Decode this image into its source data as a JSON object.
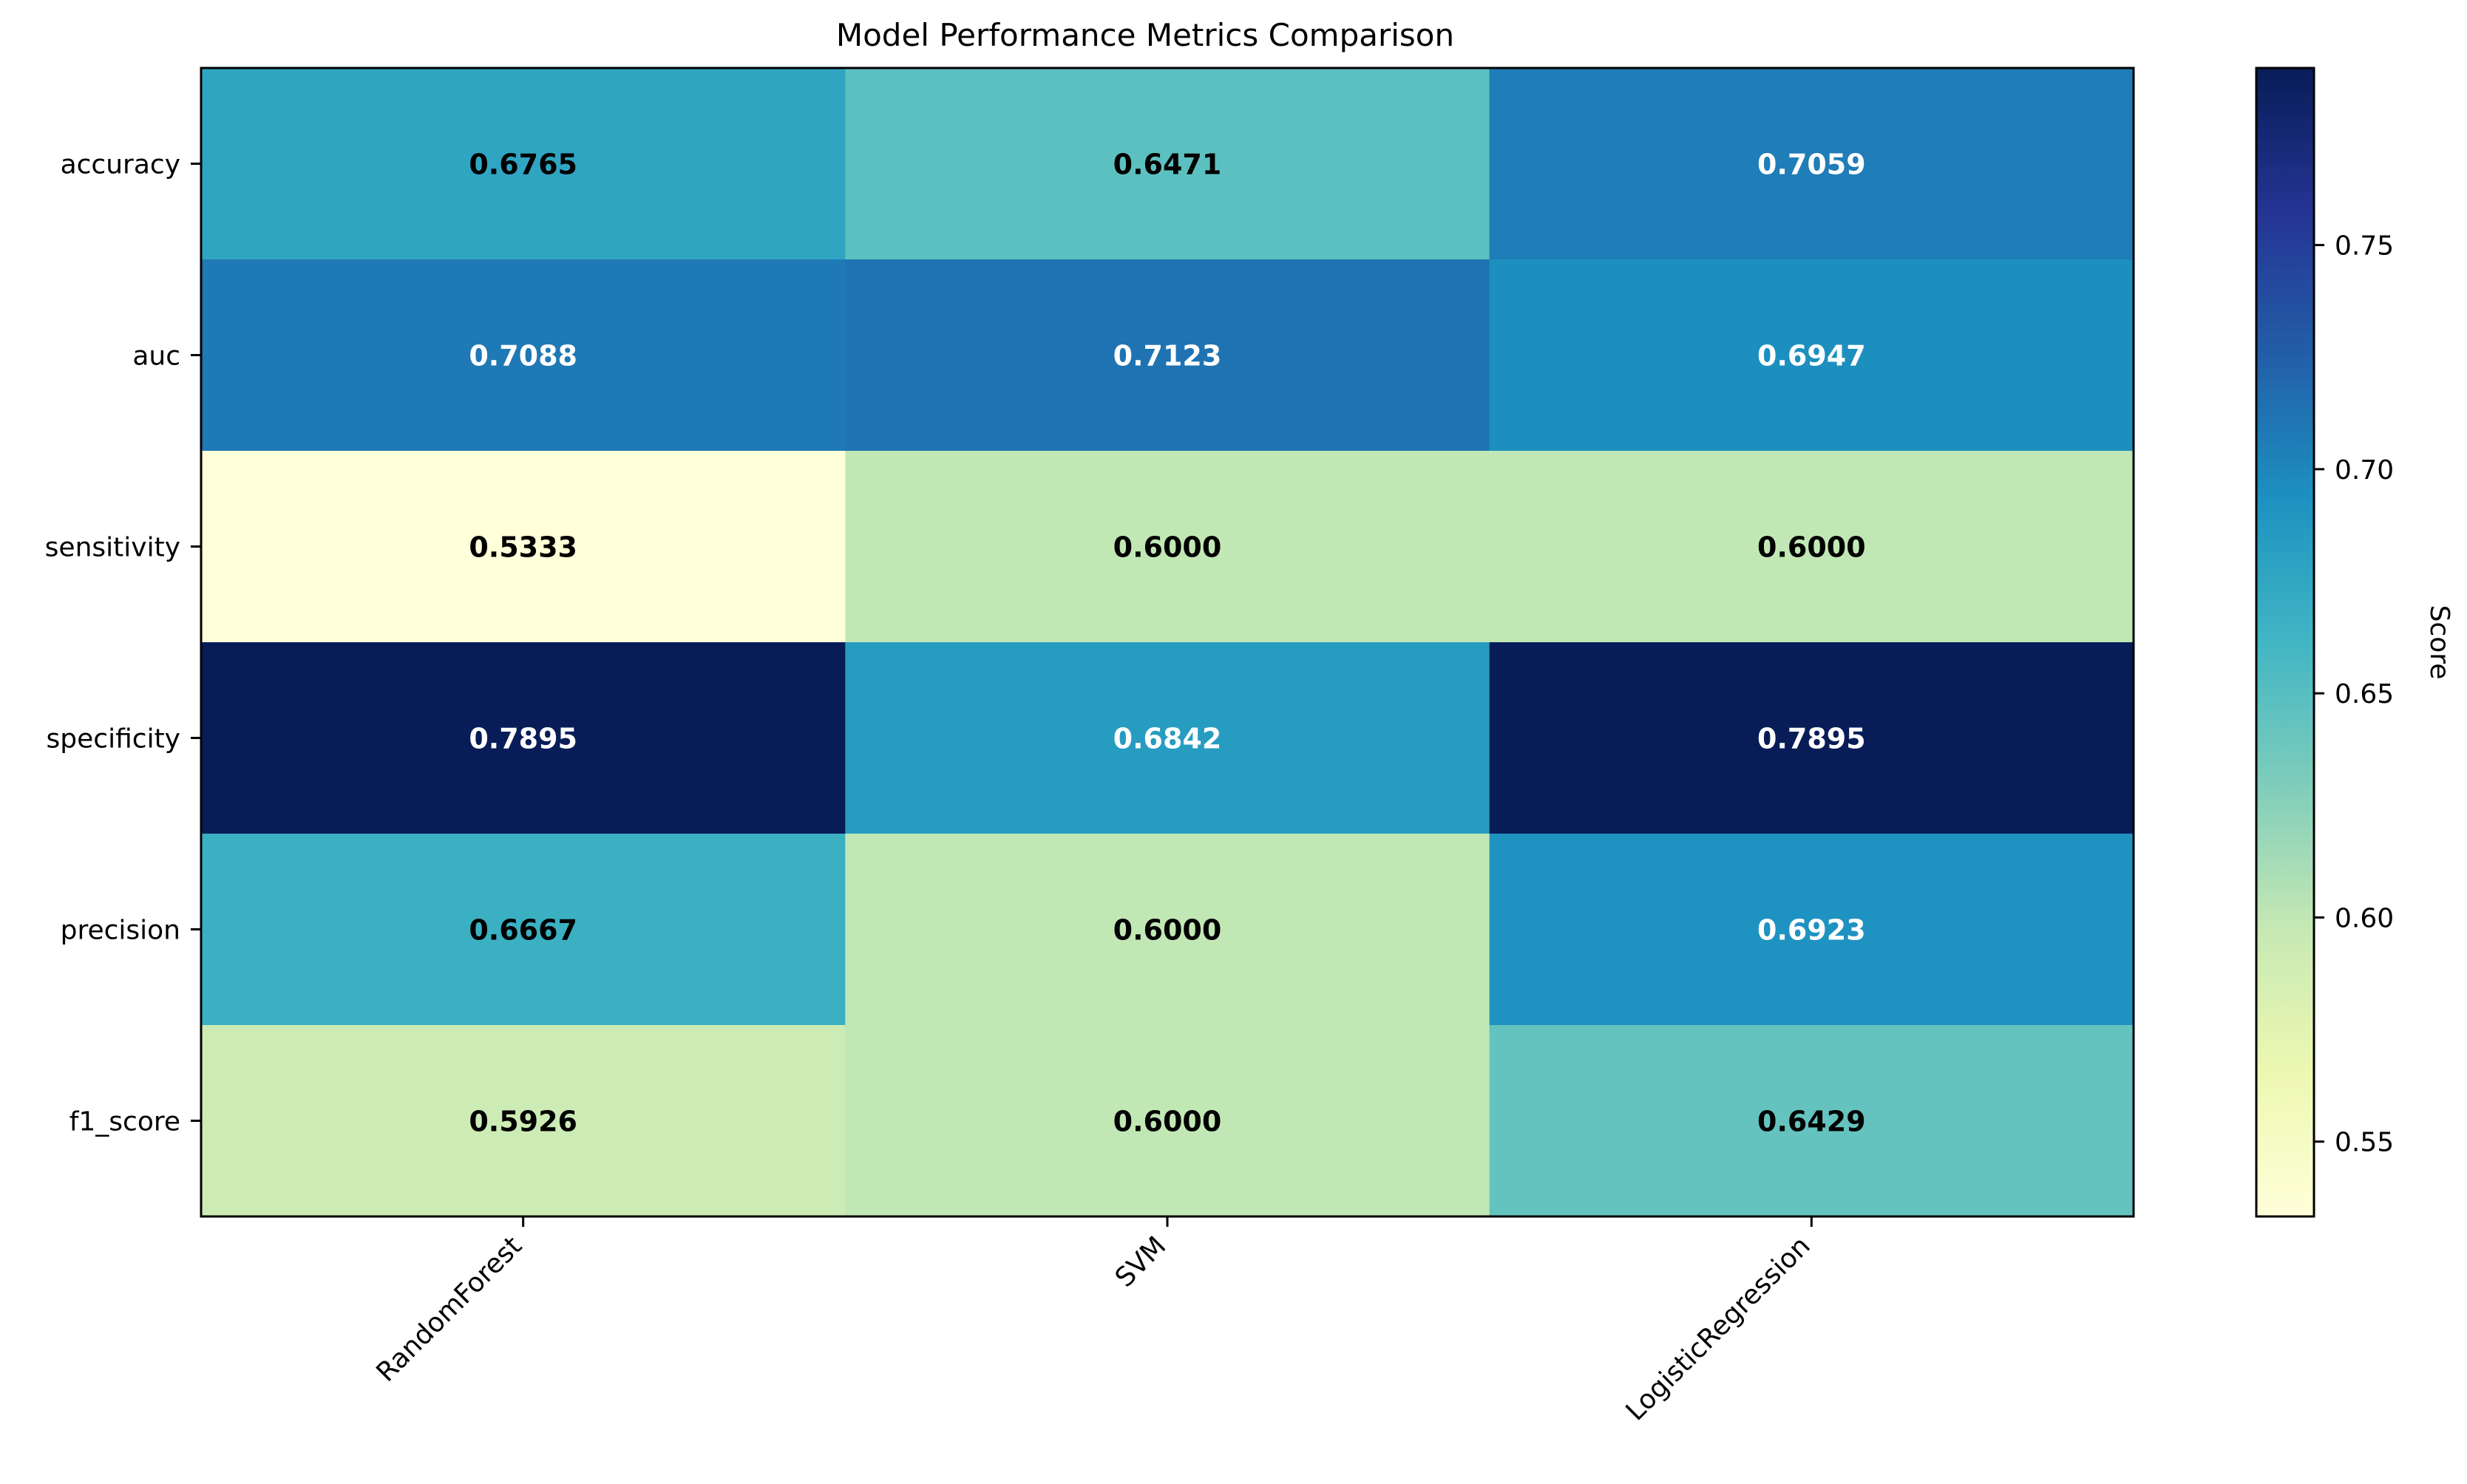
{
  "chart_data": {
    "type": "heatmap",
    "title": "Model Performance Metrics Comparison",
    "columns": [
      "RandomForest",
      "SVM",
      "LogisticRegression"
    ],
    "rows": [
      "accuracy",
      "auc",
      "sensitivity",
      "specificity",
      "precision",
      "f1_score"
    ],
    "values": [
      [
        0.6765,
        0.6471,
        0.7059
      ],
      [
        0.7088,
        0.7123,
        0.6947
      ],
      [
        0.5333,
        0.6,
        0.6
      ],
      [
        0.7895,
        0.6842,
        0.7895
      ],
      [
        0.6667,
        0.6,
        0.6923
      ],
      [
        0.5926,
        0.6,
        0.6429
      ]
    ],
    "value_labels": [
      [
        "0.6765",
        "0.6471",
        "0.7059"
      ],
      [
        "0.7088",
        "0.7123",
        "0.6947"
      ],
      [
        "0.5333",
        "0.6000",
        "0.6000"
      ],
      [
        "0.7895",
        "0.6842",
        "0.7895"
      ],
      [
        "0.6667",
        "0.6000",
        "0.6923"
      ],
      [
        "0.5926",
        "0.6000",
        "0.6429"
      ]
    ],
    "colormap": "YlGnBu",
    "colorbar": {
      "label": "Score",
      "range": [
        0.5333,
        0.7895
      ],
      "ticks": [
        0.55,
        0.6,
        0.65,
        0.7,
        0.75
      ],
      "tick_labels": [
        "0.55",
        "0.60",
        "0.65",
        "0.70",
        "0.75"
      ]
    }
  }
}
